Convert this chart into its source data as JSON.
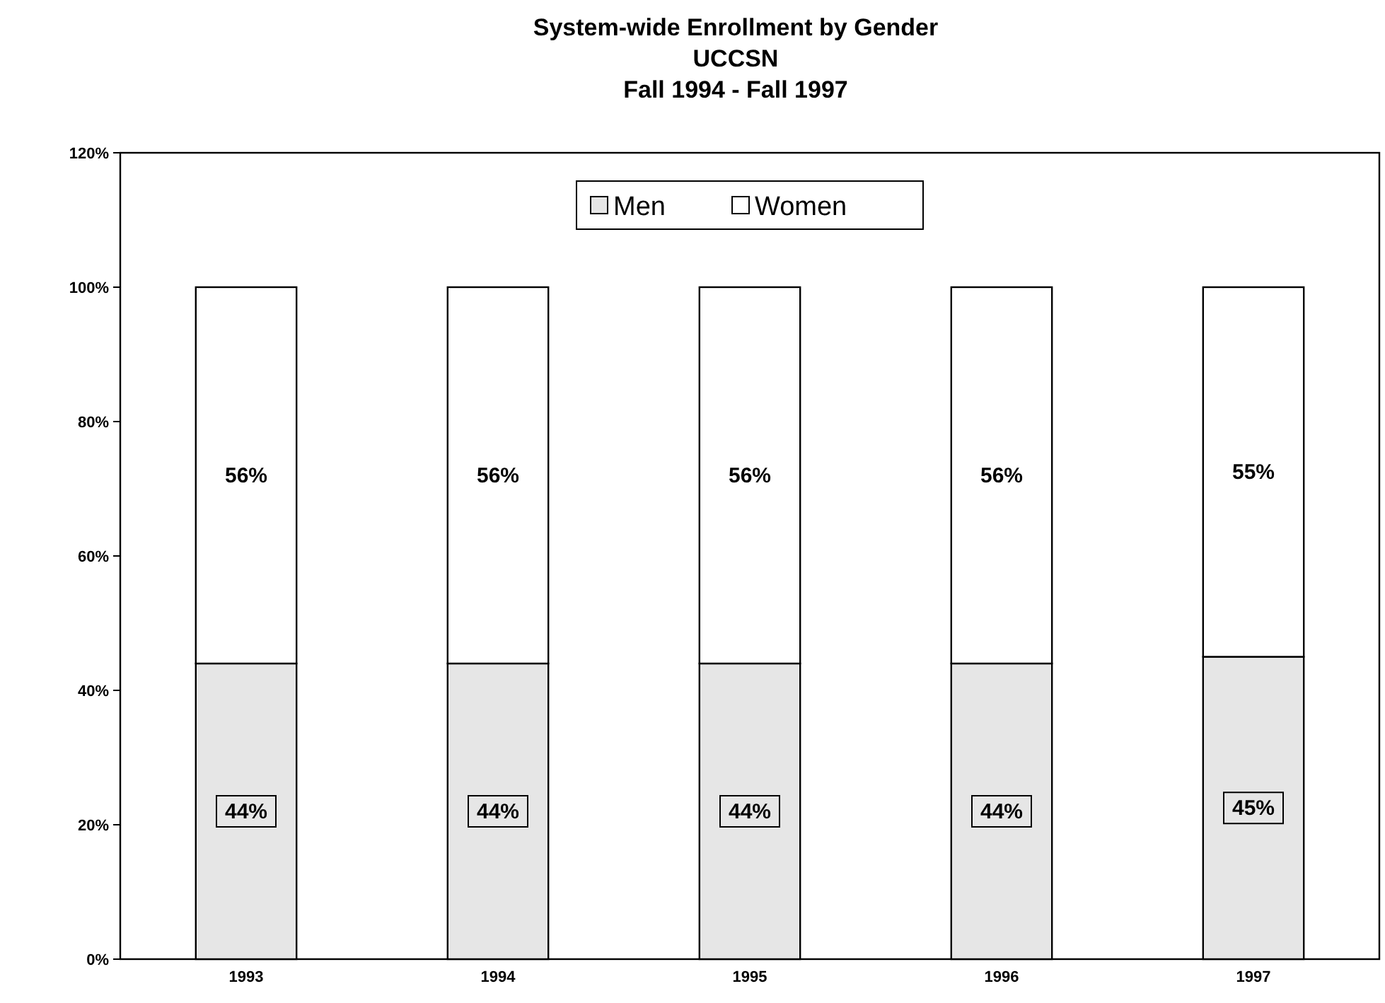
{
  "chart_data": {
    "type": "bar",
    "title": "System-wide Enrollment by Gender\nUCCSN\nFall 1994  -  Fall 1997",
    "categories": [
      "1993",
      "1994",
      "1995",
      "1996",
      "1997"
    ],
    "stacked": true,
    "legend": "top",
    "grid": false,
    "ylim": [
      0,
      120
    ],
    "yticks": [
      {
        "value": 0,
        "label": "0%"
      },
      {
        "value": 20,
        "label": "20%"
      },
      {
        "value": 40,
        "label": "40%"
      },
      {
        "value": 60,
        "label": "60%"
      },
      {
        "value": 80,
        "label": "80%"
      },
      {
        "value": 100,
        "label": "100%"
      },
      {
        "value": 120,
        "label": "120%"
      }
    ],
    "series": [
      {
        "name": "Men",
        "color": "#e6e6e6",
        "values": [
          44,
          44,
          44,
          44,
          45
        ],
        "value_labels": [
          "44%",
          "44%",
          "44%",
          "44%",
          "45%"
        ]
      },
      {
        "name": "Women",
        "color": "#ffffff",
        "values": [
          56,
          56,
          56,
          56,
          55
        ],
        "value_labels": [
          "56%",
          "56%",
          "56%",
          "56%",
          "55%"
        ]
      }
    ]
  }
}
